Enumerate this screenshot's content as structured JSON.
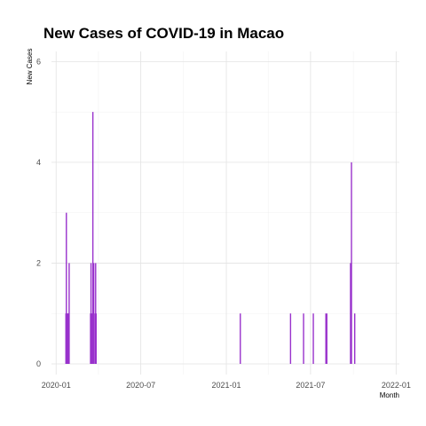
{
  "chart_data": {
    "type": "bar",
    "title": "New Cases of COVID-19 in Macao",
    "xlabel": "Month",
    "ylabel": "New Cases",
    "xlim": [
      "2019-12-22",
      "2022-01-08"
    ],
    "ylim": [
      0,
      6.2
    ],
    "x_ticks": [
      "2020-01",
      "2020-07",
      "2021-01",
      "2021-07",
      "2022-01"
    ],
    "x_tick_dates": [
      "2020-01-01",
      "2020-07-01",
      "2021-01-01",
      "2021-07-01",
      "2022-01-01"
    ],
    "y_ticks": [
      0,
      2,
      4,
      6
    ],
    "grid": true,
    "bar_color": "#9932cc",
    "series": [
      {
        "points": [
          {
            "date": "2020-01-22",
            "value": 1
          },
          {
            "date": "2020-01-23",
            "value": 3
          },
          {
            "date": "2020-01-24",
            "value": 1
          },
          {
            "date": "2020-01-26",
            "value": 1
          },
          {
            "date": "2020-01-27",
            "value": 1
          },
          {
            "date": "2020-01-28",
            "value": 1
          },
          {
            "date": "2020-01-29",
            "value": 2
          },
          {
            "date": "2020-03-15",
            "value": 1
          },
          {
            "date": "2020-03-16",
            "value": 2
          },
          {
            "date": "2020-03-17",
            "value": 1
          },
          {
            "date": "2020-03-18",
            "value": 1
          },
          {
            "date": "2020-03-20",
            "value": 5
          },
          {
            "date": "2020-03-21",
            "value": 1
          },
          {
            "date": "2020-03-22",
            "value": 2
          },
          {
            "date": "2020-03-25",
            "value": 1
          },
          {
            "date": "2020-03-26",
            "value": 2
          },
          {
            "date": "2020-03-27",
            "value": 1
          },
          {
            "date": "2021-01-31",
            "value": 1
          },
          {
            "date": "2021-05-19",
            "value": 1
          },
          {
            "date": "2021-06-16",
            "value": 1
          },
          {
            "date": "2021-07-07",
            "value": 1
          },
          {
            "date": "2021-08-03",
            "value": 1
          },
          {
            "date": "2021-08-05",
            "value": 1
          },
          {
            "date": "2021-09-25",
            "value": 2
          },
          {
            "date": "2021-09-27",
            "value": 4
          },
          {
            "date": "2021-10-04",
            "value": 1
          }
        ]
      }
    ]
  }
}
